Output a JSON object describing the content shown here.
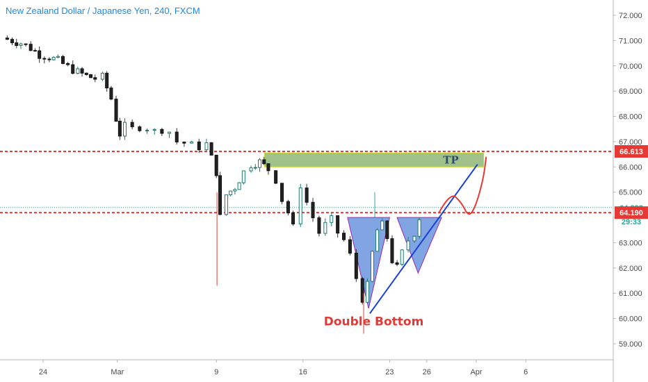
{
  "header": {
    "title": "New Zealand Dollar / Japanese Yen, 240, FXCM"
  },
  "chart_data": {
    "type": "candlestick",
    "symbol": "NZDJPY",
    "timeframe": "240",
    "source": "FXCM",
    "title": "New Zealand Dollar / Japanese Yen, 240, FXCM",
    "ylim": [
      58.6,
      72.4
    ],
    "y_ticks": [
      "72.000",
      "71.000",
      "70.000",
      "69.000",
      "68.000",
      "67.000",
      "66.000",
      "65.000",
      "64.000",
      "63.000",
      "62.000",
      "61.000",
      "60.000",
      "59.000"
    ],
    "x_ticks": [
      {
        "label": "24",
        "x": 0
      },
      {
        "label": "Mar",
        "x": 6
      },
      {
        "label": "9",
        "x": 14
      },
      {
        "label": "16",
        "x": 21
      },
      {
        "label": "23",
        "x": 28
      },
      {
        "label": "26",
        "x": 31
      },
      {
        "label": "Apr",
        "x": 35
      },
      {
        "label": "6",
        "x": 39
      }
    ],
    "price_path": [
      [
        -3.3,
        71.1
      ],
      [
        -2.5,
        71.0
      ],
      [
        -1.8,
        70.9
      ],
      [
        -1.0,
        70.7
      ],
      [
        -0.3,
        70.45
      ],
      [
        0.5,
        70.35
      ],
      [
        1.2,
        70.2
      ],
      [
        2.0,
        69.95
      ],
      [
        2.8,
        69.75
      ],
      [
        3.5,
        69.6
      ],
      [
        4.2,
        69.5
      ],
      [
        4.8,
        69.55
      ],
      [
        5.5,
        68.7
      ],
      [
        5.9,
        67.9
      ],
      [
        6.2,
        67.3
      ],
      [
        6.6,
        67.6
      ],
      [
        7.2,
        67.5
      ],
      [
        7.8,
        67.6
      ],
      [
        8.4,
        67.55
      ],
      [
        9.0,
        67.4
      ],
      [
        9.6,
        67.5
      ],
      [
        10.2,
        67.4
      ],
      [
        10.8,
        67.0
      ],
      [
        11.4,
        66.95
      ],
      [
        12.0,
        66.85
      ],
      [
        12.6,
        66.8
      ],
      [
        13.2,
        66.9
      ],
      [
        14.0,
        65.8
      ],
      [
        14.3,
        64.0
      ],
      [
        14.8,
        64.9
      ],
      [
        15.5,
        65.2
      ],
      [
        16.2,
        65.8
      ],
      [
        16.8,
        66.1
      ],
      [
        17.5,
        66.2
      ],
      [
        18.2,
        65.9
      ],
      [
        18.8,
        65.5
      ],
      [
        19.3,
        64.7
      ],
      [
        19.8,
        64.2
      ],
      [
        20.2,
        63.6
      ],
      [
        20.8,
        65.3
      ],
      [
        21.3,
        64.6
      ],
      [
        21.8,
        64.0
      ],
      [
        22.3,
        63.4
      ],
      [
        22.8,
        63.7
      ],
      [
        23.3,
        63.9
      ],
      [
        23.8,
        63.4
      ],
      [
        24.3,
        63.1
      ],
      [
        24.8,
        62.5
      ],
      [
        25.3,
        61.6
      ],
      [
        25.8,
        60.8
      ],
      [
        26.2,
        61.3
      ],
      [
        26.6,
        62.6
      ],
      [
        27.0,
        63.5
      ],
      [
        27.4,
        63.7
      ],
      [
        27.8,
        63.2
      ],
      [
        28.2,
        62.3
      ],
      [
        28.6,
        62.0
      ],
      [
        29.0,
        62.6
      ],
      [
        29.5,
        63.1
      ],
      [
        30.0,
        63.4
      ],
      [
        30.4,
        64.0
      ]
    ],
    "horizontal_lines": [
      {
        "price": 66.613,
        "label": "66.613",
        "color": "#e53935",
        "style": "dashed"
      },
      {
        "price": 64.19,
        "label": "64.190",
        "color": "#e53935",
        "style": "dashed"
      },
      {
        "price": 64.393,
        "label": "64.393",
        "color": "#26a69a",
        "style": "dotted"
      }
    ],
    "countdown_label": "29:33",
    "annotations": [
      {
        "type": "rectangle",
        "label": "TP",
        "price_top": 66.55,
        "price_bottom": 66.0,
        "x_start": 17.9,
        "x_end": 35.6
      },
      {
        "type": "triangle",
        "points": [
          [
            24.6,
            64.0
          ],
          [
            28.0,
            64.0
          ],
          [
            26.3,
            60.4
          ]
        ]
      },
      {
        "type": "triangle",
        "points": [
          [
            28.6,
            64.0
          ],
          [
            32.2,
            64.0
          ],
          [
            30.3,
            61.8
          ]
        ]
      },
      {
        "type": "trendline",
        "points": [
          [
            26.4,
            60.2
          ],
          [
            35.1,
            66.1
          ]
        ]
      },
      {
        "type": "curve",
        "points": [
          [
            32.0,
            64.2
          ],
          [
            32.9,
            65.0
          ],
          [
            33.8,
            64.6
          ],
          [
            34.4,
            64.0
          ],
          [
            35.0,
            64.5
          ],
          [
            35.6,
            65.6
          ],
          [
            35.8,
            66.4
          ]
        ]
      },
      {
        "type": "text",
        "label": "Double Bottom",
        "x": 28.4,
        "price": 59.9
      }
    ]
  }
}
